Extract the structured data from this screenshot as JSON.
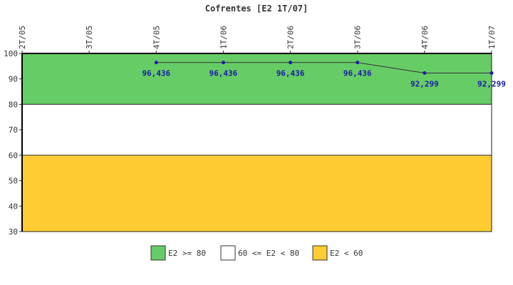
{
  "chart_data": {
    "type": "line",
    "title": "Cofrentes [E2 1T/07]",
    "categories": [
      "2T/05",
      "3T/05",
      "4T/05",
      "1T/06",
      "2T/06",
      "3T/06",
      "4T/06",
      "1T/07"
    ],
    "series": [
      {
        "values": [
          null,
          null,
          96.436,
          96.436,
          96.436,
          96.436,
          92.299,
          92.299
        ],
        "data_labels": [
          "",
          "",
          "96,436",
          "96,436",
          "96,436",
          "96,436",
          "92,299",
          "92,299"
        ]
      }
    ],
    "ylim": [
      30,
      100
    ],
    "yticks": [
      30,
      40,
      50,
      60,
      70,
      80,
      90,
      100
    ],
    "bands": [
      {
        "label": "E2 >= 80",
        "from": 80,
        "to": 100,
        "color": "#66cc66"
      },
      {
        "label": "60 <= E2 < 80",
        "from": 60,
        "to": 80,
        "color": "#ffffff"
      },
      {
        "label": "E2 < 60",
        "from": 30,
        "to": 60,
        "color": "#ffcc33"
      }
    ],
    "line_color": "#333333",
    "marker_color": "#1a1aa6",
    "legend_position": "bottom-center",
    "grid": false
  }
}
